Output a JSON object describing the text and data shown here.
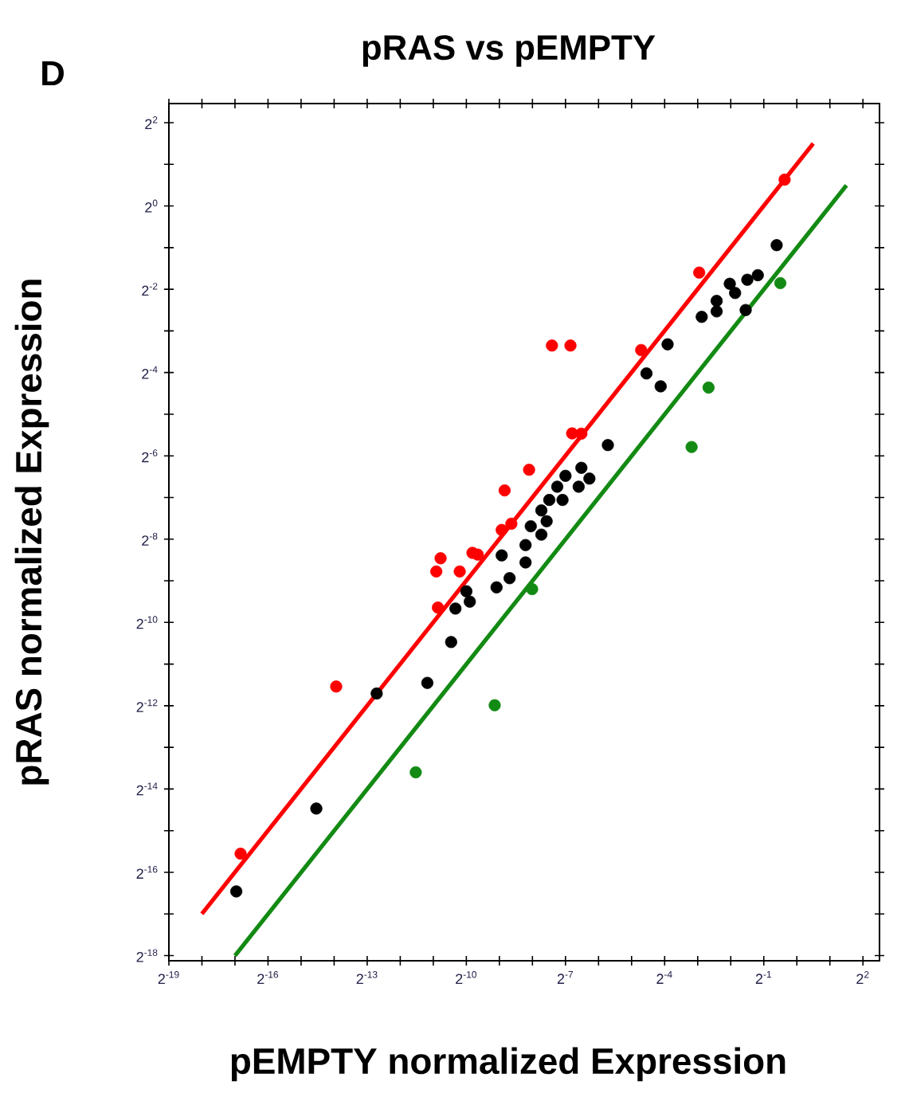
{
  "chart_data": {
    "type": "scatter",
    "title": "pRAS vs pEMPTY",
    "xlabel": "pEMPTY normalized Expression",
    "ylabel": "pRAS normalized Expression",
    "annotations": [
      "D"
    ],
    "log": "xy",
    "marker": "circle",
    "xlim": [
      1.9073486328125e-06,
      5.66
    ],
    "ylim": [
      3.5e-06,
      5.5
    ],
    "xticks": [
      {
        "value": 1.9073486328125e-06,
        "label": "2$^{-19}$"
      },
      {
        "value": 3.814697265625e-06,
        "label": null
      },
      {
        "value": 7.62939453125e-06,
        "label": null
      },
      {
        "value": 1.52587890625e-05,
        "label": "2$^{-16}$"
      },
      {
        "value": 3.0517578125e-05,
        "label": null
      },
      {
        "value": 6.103515625e-05,
        "label": null
      },
      {
        "value": 0.0001220703125,
        "label": "2$^{-13}$"
      },
      {
        "value": 0.000244140625,
        "label": null
      },
      {
        "value": 0.00048828125,
        "label": null
      },
      {
        "value": 0.0009765625,
        "label": "2$^{-10}$"
      },
      {
        "value": 0.001953125,
        "label": null
      },
      {
        "value": 0.00390625,
        "label": null
      },
      {
        "value": 0.0078125,
        "label": "2$^{-7}$"
      },
      {
        "value": 0.015625,
        "label": null
      },
      {
        "value": 0.03125,
        "label": null
      },
      {
        "value": 0.0625,
        "label": "2$^{-4}$"
      },
      {
        "value": 0.125,
        "label": null
      },
      {
        "value": 0.25,
        "label": null
      },
      {
        "value": 0.5,
        "label": "2$^{-1}$"
      },
      {
        "value": 1,
        "label": null
      },
      {
        "value": 2,
        "label": null
      },
      {
        "value": 4,
        "label": "2$^{2}$"
      }
    ],
    "yticks": [
      {
        "value": 3.814697265625e-06,
        "label": "2$^{-18}$"
      },
      {
        "value": 7.62939453125e-06,
        "label": null
      },
      {
        "value": 1.52587890625e-05,
        "label": "2$^{-16}$"
      },
      {
        "value": 3.0517578125e-05,
        "label": null
      },
      {
        "value": 6.103515625e-05,
        "label": "2$^{-14}$"
      },
      {
        "value": 0.0001220703125,
        "label": null
      },
      {
        "value": 0.000244140625,
        "label": "2$^{-12}$"
      },
      {
        "value": 0.00048828125,
        "label": null
      },
      {
        "value": 0.0009765625,
        "label": "2$^{-10}$"
      },
      {
        "value": 0.001953125,
        "label": null
      },
      {
        "value": 0.00390625,
        "label": "2$^{-8}$"
      },
      {
        "value": 0.0078125,
        "label": null
      },
      {
        "value": 0.015625,
        "label": "2$^{-6}$"
      },
      {
        "value": 0.03125,
        "label": null
      },
      {
        "value": 0.0625,
        "label": "2$^{-4}$"
      },
      {
        "value": 0.125,
        "label": null
      },
      {
        "value": 0.25,
        "label": "2$^{-2}$"
      },
      {
        "value": 0.5,
        "label": null
      },
      {
        "value": 1,
        "label": "2$^{0}$"
      },
      {
        "value": 2,
        "label": null
      },
      {
        "value": 4,
        "label": "2$^{2}$"
      }
    ],
    "series": [
      {
        "type": "line",
        "marker": "none",
        "color": "#ff0000",
        "x": [
          3.81e-06,
          1.41
        ],
        "values": [
          7.63e-06,
          2.83
        ]
      },
      {
        "type": "line",
        "marker": "none",
        "color": "#138a13",
        "x": [
          7.63e-06,
          2.83
        ],
        "values": [
          3.81e-06,
          1.41
        ]
      },
      {
        "color": "#000000",
        "x": [
          0.655,
          0.441,
          0.354,
          0.245,
          0.274,
          0.186,
          0.186,
          0.136,
          0.342,
          0.0665,
          0.0427,
          0.0575,
          0.019,
          0.0109,
          0.0129,
          0.0103,
          0.00781,
          0.00657,
          0.00734,
          0.00556,
          0.00471,
          0.00526,
          0.00377,
          0.00471,
          0.00338,
          0.00205,
          0.00338,
          0.00242,
          0.00184,
          0.000977,
          0.00105,
          0.000777,
          0.00071,
          0.000431,
          0.000149,
          4.2e-05,
          7.84e-06
        ],
        "values": [
          0.521,
          0.316,
          0.293,
          0.274,
          0.235,
          0.206,
          0.173,
          0.158,
          0.177,
          0.1,
          0.0616,
          0.0497,
          0.0187,
          0.0128,
          0.0107,
          0.00935,
          0.0112,
          0.00935,
          0.0075,
          0.0075,
          0.0063,
          0.00526,
          0.00484,
          0.00421,
          0.00354,
          0.00298,
          0.00265,
          0.00204,
          0.00175,
          0.00164,
          0.00138,
          0.00123,
          0.000705,
          0.000357,
          0.000299,
          4.41e-05,
          1.11e-05
        ]
      },
      {
        "color": "#ff0000",
        "x": [
          0.774,
          0.129,
          0.00588,
          0.00867,
          0.0382,
          0.00898,
          0.0109,
          0.00364,
          0.00218,
          0.00205,
          0.00251,
          0.000569,
          0.00052,
          0.00111,
          0.00124,
          0.00085,
          0.000538,
          6.37e-05,
          8.58e-06
        ],
        "values": [
          1.55,
          0.33,
          0.098,
          0.098,
          0.0909,
          0.0227,
          0.0226,
          0.0124,
          0.00879,
          0.00455,
          0.00505,
          0.00284,
          0.00228,
          0.00311,
          0.00302,
          0.00228,
          0.00125,
          0.000336,
          2.08e-05
        ]
      },
      {
        "color": "#138a13",
        "x": [
          0.707,
          0.157,
          0.11,
          0.00388,
          0.00177,
          0.000338
        ],
        "values": [
          0.277,
          0.0487,
          0.0181,
          0.0017,
          0.000246,
          8.06e-05
        ]
      }
    ]
  }
}
